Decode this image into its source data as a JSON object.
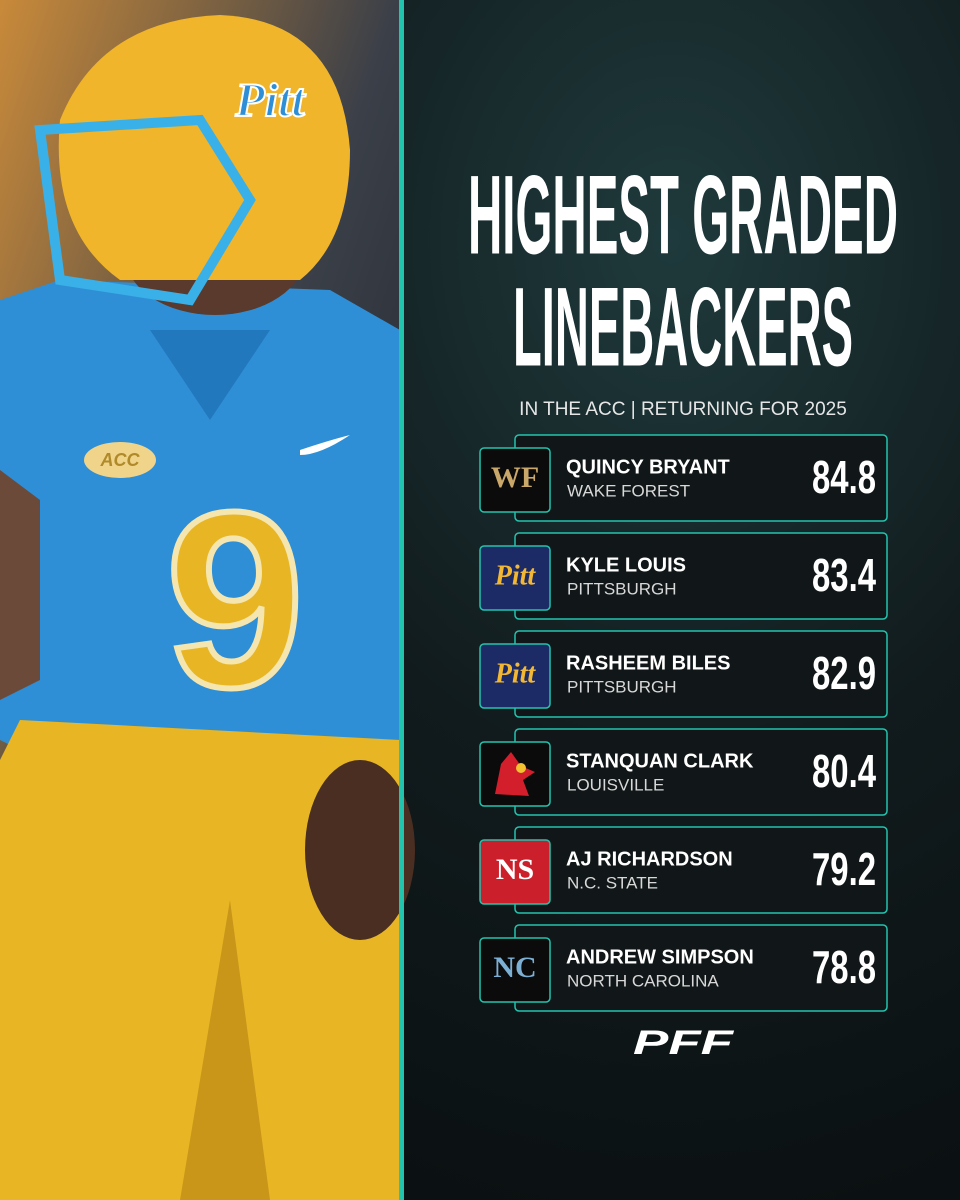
{
  "header": {
    "title_lines": [
      "HIGHEST GRADED",
      "LINEBACKERS"
    ],
    "subtitle": "IN THE ACC | RETURNING FOR 2025"
  },
  "photo": {
    "helmet_text": "Pitt",
    "patch_text": "ACC",
    "jersey_number": "9"
  },
  "table": {
    "rows": [
      {
        "name": "QUINCY BRYANT",
        "team": "WAKE FOREST",
        "grade": "84.8",
        "logo_text": "WF",
        "logo_color": "#c9a86a",
        "logo_bg": "#0b0b0b"
      },
      {
        "name": "KYLE LOUIS",
        "team": "PITTSBURGH",
        "grade": "83.4",
        "logo_text": "Pitt",
        "logo_color": "#f2b733",
        "logo_bg": "#1c2a66"
      },
      {
        "name": "RASHEEM BILES",
        "team": "PITTSBURGH",
        "grade": "82.9",
        "logo_text": "Pitt",
        "logo_color": "#f2b733",
        "logo_bg": "#1c2a66"
      },
      {
        "name": "STANQUAN CLARK",
        "team": "LOUISVILLE",
        "grade": "80.4",
        "logo_color": "#d21f2b",
        "logo_bg": "#0b0b0b"
      },
      {
        "name": "AJ RICHARDSON",
        "team": "N.C. STATE",
        "grade": "79.2",
        "logo_text": "NS",
        "logo_color": "#ffffff",
        "logo_bg": "#cc1f2c"
      },
      {
        "name": "ANDREW SIMPSON",
        "team": "NORTH CAROLINA",
        "grade": "78.8",
        "logo_text": "NC",
        "logo_color": "#7bafd4",
        "logo_bg": "#0b0b0b"
      }
    ]
  },
  "footer": {
    "brand": "PFF"
  }
}
